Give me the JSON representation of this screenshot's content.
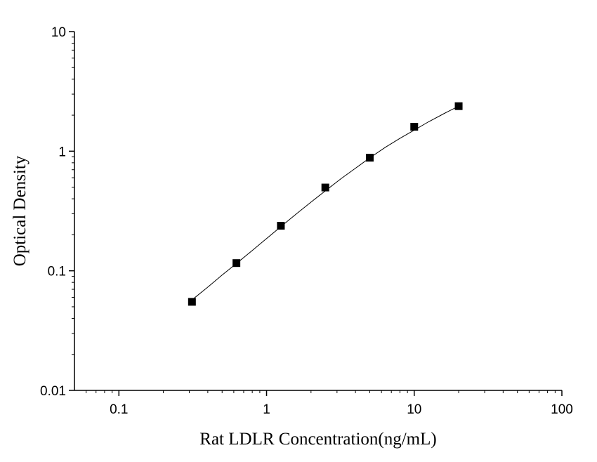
{
  "chart_data": {
    "type": "scatter",
    "title": "",
    "xlabel": "Rat LDLR Concentration(ng/mL)",
    "ylabel": "Optical Density",
    "xscale": "log",
    "yscale": "log",
    "xlim": [
      0.05,
      100
    ],
    "ylim": [
      0.01,
      10
    ],
    "x_ticks": [
      0.1,
      1,
      10,
      100
    ],
    "x_tick_labels": [
      "0.1",
      "1",
      "10",
      "100"
    ],
    "y_ticks": [
      0.01,
      0.1,
      1,
      10
    ],
    "y_tick_labels": [
      "0.01",
      "0.1",
      "1",
      "10"
    ],
    "grid": false,
    "legend": "none",
    "marker": "square",
    "marker_color": "#000000",
    "series": [
      {
        "x": [
          0.3125,
          0.625,
          1.25,
          2.5,
          5,
          10,
          20
        ],
        "y": [
          0.055,
          0.116,
          0.238,
          0.497,
          0.882,
          1.6,
          2.38
        ]
      }
    ],
    "fit_curve": {
      "x": [
        0.3125,
        0.4,
        0.5,
        0.625,
        0.8,
        1,
        1.25,
        1.6,
        2,
        2.5,
        3.2,
        4,
        5,
        6.4,
        8,
        10,
        12.5,
        16,
        20
      ],
      "y": [
        0.057,
        0.073,
        0.092,
        0.115,
        0.148,
        0.186,
        0.234,
        0.301,
        0.375,
        0.466,
        0.59,
        0.72,
        0.88,
        1.08,
        1.28,
        1.5,
        1.76,
        2.07,
        2.38
      ]
    }
  }
}
